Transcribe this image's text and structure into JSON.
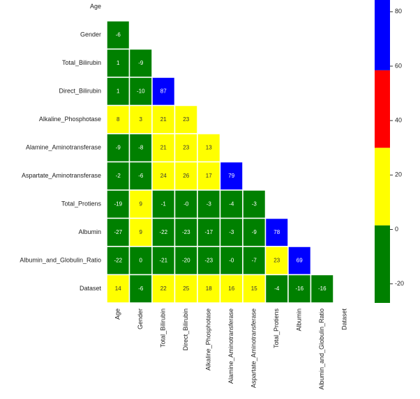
{
  "chart_data": {
    "type": "heatmap",
    "rows": [
      "Age",
      "Gender",
      "Total_Bilirubin",
      "Direct_Bilirubin",
      "Alkaline_Phosphotase",
      "Alamine_Aminotransferase",
      "Aspartate_Aminotransferase",
      "Total_Protiens",
      "Albumin",
      "Albumin_and_Globulin_Ratio",
      "Dataset"
    ],
    "columns": [
      "Age",
      "Gender",
      "Total_Bilirubin",
      "Direct_Bilirubin",
      "Alkaline_Phosphotase",
      "Alamine_Aminotransferase",
      "Aspartate_Aminotransferase",
      "Total_Protiens",
      "Albumin",
      "Albumin_and_Globulin_Ratio",
      "Dataset"
    ],
    "values": [
      [],
      [
        -6
      ],
      [
        1,
        -9
      ],
      [
        1,
        -10,
        87
      ],
      [
        8,
        3,
        21,
        23
      ],
      [
        -9,
        -8,
        21,
        23,
        13
      ],
      [
        -2,
        -6,
        24,
        26,
        17,
        79
      ],
      [
        -19,
        9,
        -1,
        0,
        -3,
        -4,
        -3
      ],
      [
        -27,
        9,
        -22,
        -23,
        -17,
        -3,
        -9,
        78
      ],
      [
        -22,
        0,
        -21,
        -20,
        -23,
        0,
        -7,
        23,
        69
      ],
      [
        14,
        -6,
        22,
        25,
        18,
        16,
        15,
        -4,
        -16,
        -16
      ]
    ],
    "value_labels": [
      [],
      [
        "-6"
      ],
      [
        "1",
        "-9"
      ],
      [
        "1",
        "-10",
        "87"
      ],
      [
        "8",
        "3",
        "21",
        "23"
      ],
      [
        "-9",
        "-8",
        "21",
        "23",
        "13"
      ],
      [
        "-2",
        "-6",
        "24",
        "26",
        "17",
        "79"
      ],
      [
        "-19",
        "9",
        "-1",
        "-0",
        "-3",
        "-4",
        "-3"
      ],
      [
        "-27",
        "9",
        "-22",
        "-23",
        "-17",
        "-3",
        "-9",
        "78"
      ],
      [
        "-22",
        "0",
        "-21",
        "-20",
        "-23",
        "-0",
        "-7",
        "23",
        "69"
      ],
      [
        "14",
        "-6",
        "22",
        "25",
        "18",
        "16",
        "15",
        "-4",
        "-16",
        "-16"
      ]
    ],
    "colorbar": {
      "lim": [
        -27,
        87
      ],
      "ticks": [
        -20,
        0,
        20,
        40,
        60,
        80
      ],
      "colors": [
        "#008000",
        "#ffff00",
        "#ff0000",
        "#0000ff"
      ]
    }
  }
}
